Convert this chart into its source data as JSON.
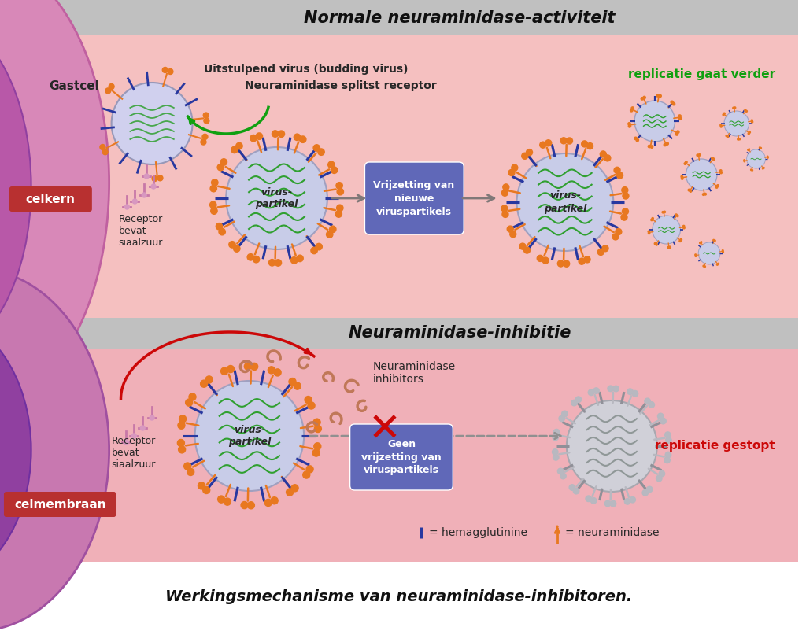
{
  "title_top": "Normale neuraminidase-activiteit",
  "title_bottom": "Neuraminidase-inhibitie",
  "caption": "Werkingsmechanisme van neuraminidase-inhibitoren.",
  "bg_top": "#f5c8c8",
  "bg_bottom": "#f0b8c0",
  "bg_white": "#ffffff",
  "header_gray": "#b8b8b8",
  "cell_outer_top": "#d888b8",
  "cell_inner_top": "#c060a8",
  "cell_nucleus_top": "#9848a8",
  "cell_outer_bot": "#d090c0",
  "cell_inner_bot": "#9050a0",
  "virus_fill": "#c8cce8",
  "virus_border": "#a0a0c0",
  "spike_orange": "#e87820",
  "spike_blue": "#2838a0",
  "green_rna": "#30a030",
  "arrow_gray": "#909090",
  "green_arrow": "#10a010",
  "red_arrow": "#cc0808",
  "box_purple": "#6068b8",
  "box_text": "#ffffff",
  "label_dark": "#282828",
  "celkern_bg": "#b83030",
  "repl_green": "#10a010",
  "repl_red": "#cc0808",
  "inhibitor_brown": "#c07858",
  "gray_virus_fill": "#d0d0d8",
  "gray_virus_border": "#a8a8b0",
  "gray_spike": "#b0b0b8",
  "legend_blue": "#2838a0",
  "legend_orange": "#e87820"
}
